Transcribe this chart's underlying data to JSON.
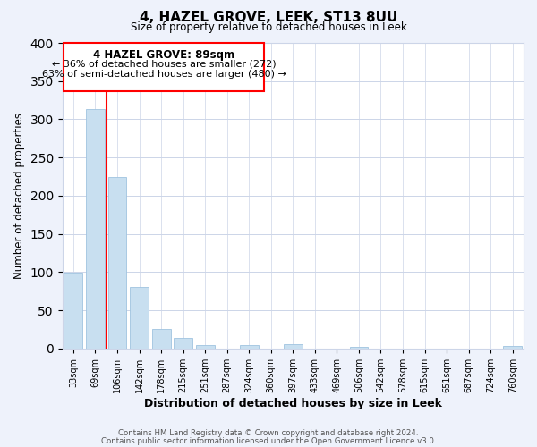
{
  "title": "4, HAZEL GROVE, LEEK, ST13 8UU",
  "subtitle": "Size of property relative to detached houses in Leek",
  "xlabel": "Distribution of detached houses by size in Leek",
  "ylabel": "Number of detached properties",
  "bar_labels": [
    "33sqm",
    "69sqm",
    "106sqm",
    "142sqm",
    "178sqm",
    "215sqm",
    "251sqm",
    "287sqm",
    "324sqm",
    "360sqm",
    "397sqm",
    "433sqm",
    "469sqm",
    "506sqm",
    "542sqm",
    "578sqm",
    "615sqm",
    "651sqm",
    "687sqm",
    "724sqm",
    "760sqm"
  ],
  "bar_heights": [
    99,
    313,
    224,
    80,
    25,
    14,
    5,
    0,
    5,
    0,
    6,
    0,
    0,
    2,
    0,
    0,
    0,
    0,
    0,
    0,
    3
  ],
  "bar_color": "#c8dff0",
  "bar_edge_color": "#a0c4e0",
  "vline_x": 1.5,
  "vline_color": "red",
  "ylim": [
    0,
    400
  ],
  "yticks": [
    0,
    50,
    100,
    150,
    200,
    250,
    300,
    350,
    400
  ],
  "annotation_title": "4 HAZEL GROVE: 89sqm",
  "annotation_line1": "← 36% of detached houses are smaller (272)",
  "annotation_line2": "63% of semi-detached houses are larger (480) →",
  "footer1": "Contains HM Land Registry data © Crown copyright and database right 2024.",
  "footer2": "Contains public sector information licensed under the Open Government Licence v3.0.",
  "bg_color": "#eef2fb",
  "plot_bg_color": "#ffffff",
  "grid_color": "#ccd5e8"
}
